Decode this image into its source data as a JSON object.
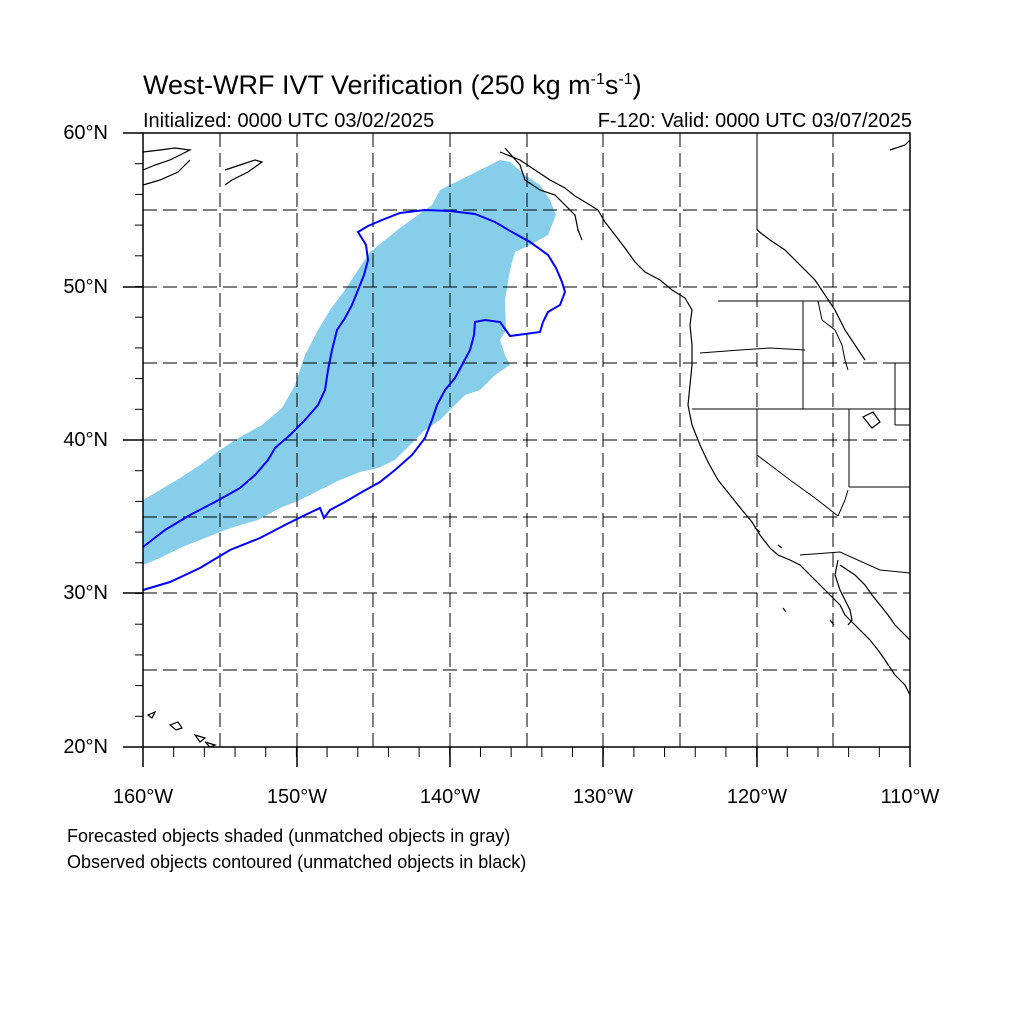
{
  "title": {
    "main": "West-WRF IVT Verification (250 kg m",
    "sup1": "-1",
    "mid": "s",
    "sup2": "-1",
    "end": ")"
  },
  "subtitle_left": "Initialized: 0000 UTC 03/02/2025",
  "subtitle_right": "F-120: Valid: 0000 UTC 03/07/2025",
  "lat_labels": [
    "60°N",
    "50°N",
    "40°N",
    "30°N",
    "20°N"
  ],
  "lon_labels": [
    "160°W",
    "150°W",
    "140°W",
    "130°W",
    "120°W",
    "110°W"
  ],
  "footer_line1": "Forecasted objects shaded (unmatched objects in gray)",
  "footer_line2": "Observed objects contoured (unmatched objects in black)",
  "map_extent": {
    "lon_min": -160,
    "lon_max": -110,
    "lat_min": 20,
    "lat_max": 60
  },
  "colors": {
    "forecast_fill": "#87ceeb",
    "observed_contour": "#0000ff",
    "coastline": "#000000",
    "grid": "#000000"
  }
}
